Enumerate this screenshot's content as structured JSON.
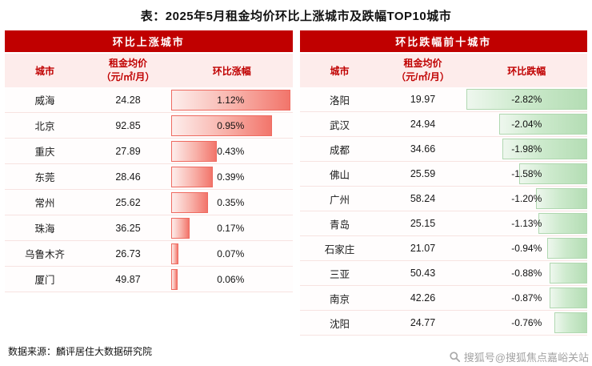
{
  "title": "表：2025年5月租金均价环比上涨城市及跌幅TOP10城市",
  "panels": {
    "left": {
      "header": "环比上涨城市",
      "columns": {
        "city": "城市",
        "price_line1": "租金均价",
        "price_line2": "（元/㎡/月）",
        "change": "环比涨幅"
      },
      "rows": [
        {
          "city": "威海",
          "price": "24.28",
          "change": "1.12%",
          "pct": 1.12
        },
        {
          "city": "北京",
          "price": "92.85",
          "change": "0.95%",
          "pct": 0.95
        },
        {
          "city": "重庆",
          "price": "27.89",
          "change": "0.43%",
          "pct": 0.43
        },
        {
          "city": "东莞",
          "price": "28.46",
          "change": "0.39%",
          "pct": 0.39
        },
        {
          "city": "常州",
          "price": "25.62",
          "change": "0.35%",
          "pct": 0.35
        },
        {
          "city": "珠海",
          "price": "36.25",
          "change": "0.17%",
          "pct": 0.17
        },
        {
          "city": "乌鲁木齐",
          "price": "26.73",
          "change": "0.07%",
          "pct": 0.07
        },
        {
          "city": "厦门",
          "price": "49.87",
          "change": "0.06%",
          "pct": 0.06
        }
      ]
    },
    "right": {
      "header": "环比跌幅前十城市",
      "columns": {
        "city": "城市",
        "price_line1": "租金均价",
        "price_line2": "（元/㎡/月）",
        "change": "环比跌幅"
      },
      "rows": [
        {
          "city": "洛阳",
          "price": "19.97",
          "change": "-2.82%",
          "pct": -2.82
        },
        {
          "city": "武汉",
          "price": "24.94",
          "change": "-2.04%",
          "pct": -2.04
        },
        {
          "city": "成都",
          "price": "34.66",
          "change": "-1.98%",
          "pct": -1.98
        },
        {
          "city": "佛山",
          "price": "25.59",
          "change": "-1.58%",
          "pct": -1.58
        },
        {
          "city": "广州",
          "price": "58.24",
          "change": "-1.20%",
          "pct": -1.2
        },
        {
          "city": "青岛",
          "price": "25.15",
          "change": "-1.13%",
          "pct": -1.13
        },
        {
          "city": "石家庄",
          "price": "21.07",
          "change": "-0.94%",
          "pct": -0.94
        },
        {
          "city": "三亚",
          "price": "50.43",
          "change": "-0.88%",
          "pct": -0.88
        },
        {
          "city": "南京",
          "price": "42.26",
          "change": "-0.87%",
          "pct": -0.87
        },
        {
          "city": "沈阳",
          "price": "24.77",
          "change": "-0.76%",
          "pct": -0.76
        }
      ]
    }
  },
  "footer": {
    "source": "数据来源：麟评居住大数据研究院",
    "watermark": "搜狐号@搜狐焦点嘉峪关站"
  },
  "colors": {
    "header_band": "#c00000",
    "column_header_bg": "#fdeceb",
    "increase_bar": "#f2756b",
    "decrease_bar": "#b4ddb4"
  },
  "chart_data": [
    {
      "type": "bar",
      "title": "环比上涨城市",
      "categories": [
        "威海",
        "北京",
        "重庆",
        "东莞",
        "常州",
        "珠海",
        "乌鲁木齐",
        "厦门"
      ],
      "series": [
        {
          "name": "租金均价（元/㎡/月）",
          "values": [
            24.28,
            92.85,
            27.89,
            28.46,
            25.62,
            36.25,
            26.73,
            49.87
          ]
        },
        {
          "name": "环比涨幅(%)",
          "values": [
            1.12,
            0.95,
            0.43,
            0.39,
            0.35,
            0.17,
            0.07,
            0.06
          ]
        }
      ],
      "xlabel": "环比涨幅",
      "ylabel": "城市",
      "xlim": [
        0,
        1.12
      ],
      "legend_position": "none",
      "grid": false
    },
    {
      "type": "bar",
      "title": "环比跌幅前十城市",
      "categories": [
        "洛阳",
        "武汉",
        "成都",
        "佛山",
        "广州",
        "青岛",
        "石家庄",
        "三亚",
        "南京",
        "沈阳"
      ],
      "series": [
        {
          "name": "租金均价（元/㎡/月）",
          "values": [
            19.97,
            24.94,
            34.66,
            25.59,
            58.24,
            25.15,
            21.07,
            50.43,
            42.26,
            24.77
          ]
        },
        {
          "name": "环比跌幅(%)",
          "values": [
            -2.82,
            -2.04,
            -1.98,
            -1.58,
            -1.2,
            -1.13,
            -0.94,
            -0.88,
            -0.87,
            -0.76
          ]
        }
      ],
      "xlabel": "环比跌幅",
      "ylabel": "城市",
      "xlim": [
        -2.82,
        0
      ],
      "legend_position": "none",
      "grid": false
    }
  ]
}
